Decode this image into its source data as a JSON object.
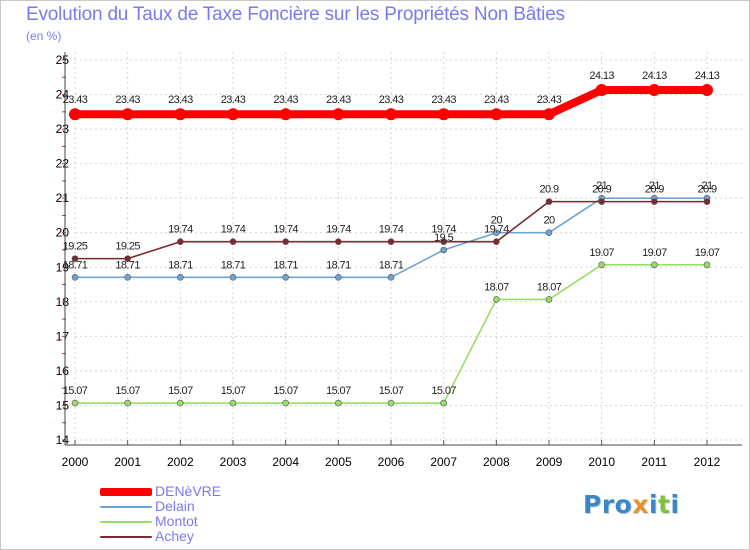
{
  "title": "Evolution du Taux de Taxe Foncière sur les Propriétés Non Bâties",
  "unit_label": "(en %)",
  "logo": {
    "p1": "Pro",
    "x": "x",
    "p2": "i",
    "t": "t",
    "p3": "i"
  },
  "chart_data": {
    "type": "line",
    "title": "Evolution du Taux de Taxe Foncière sur les Propriétés Non Bâties",
    "ylabel": "(en %)",
    "xlabel": "",
    "x": [
      "2000",
      "2001",
      "2002",
      "2003",
      "2004",
      "2005",
      "2006",
      "2007",
      "2008",
      "2009",
      "2010",
      "2011",
      "2012"
    ],
    "ylim": [
      14,
      25
    ],
    "yticks": [
      14,
      15,
      16,
      17,
      18,
      19,
      20,
      21,
      22,
      23,
      24,
      25
    ],
    "grid": true,
    "legend": "bottom-left",
    "series": [
      {
        "name": "DENèVRE",
        "color": "#ff0000",
        "values": [
          23.43,
          23.43,
          23.43,
          23.43,
          23.43,
          23.43,
          23.43,
          23.43,
          23.43,
          23.43,
          24.13,
          24.13,
          24.13
        ],
        "labels": [
          "23.43",
          "23.43",
          "23.43",
          "23.43",
          "23.43",
          "23.43",
          "23.43",
          "23.43",
          "23.43",
          "23.43",
          "24.13",
          "24.13",
          "24.13"
        ]
      },
      {
        "name": "Delain",
        "color": "#6fa3d4",
        "values": [
          18.71,
          18.71,
          18.71,
          18.71,
          18.71,
          18.71,
          18.71,
          19.5,
          20,
          20,
          21,
          21,
          21
        ],
        "labels": [
          "18.71",
          "18.71",
          "18.71",
          "18.71",
          "18.71",
          "18.71",
          "18.71",
          "19.5",
          "20",
          "20",
          "21",
          "21",
          "21"
        ]
      },
      {
        "name": "Montot",
        "color": "#99dd66",
        "values": [
          15.07,
          15.07,
          15.07,
          15.07,
          15.07,
          15.07,
          15.07,
          15.07,
          18.07,
          18.07,
          19.07,
          19.07,
          19.07
        ],
        "labels": [
          "15.07",
          "15.07",
          "15.07",
          "15.07",
          "15.07",
          "15.07",
          "15.07",
          "15.07",
          "18.07",
          "18.07",
          "19.07",
          "19.07",
          "19.07"
        ]
      },
      {
        "name": "Achey",
        "color": "#7a2a30",
        "values": [
          19.25,
          19.25,
          19.74,
          19.74,
          19.74,
          19.74,
          19.74,
          19.74,
          19.74,
          20.9,
          20.9,
          20.9,
          20.9
        ],
        "labels": [
          "19.25",
          "19.25",
          "19.74",
          "19.74",
          "19.74",
          "19.74",
          "19.74",
          "19.74",
          "19.74",
          "20.9",
          "20.9",
          "20.9",
          "20.9"
        ]
      }
    ]
  }
}
